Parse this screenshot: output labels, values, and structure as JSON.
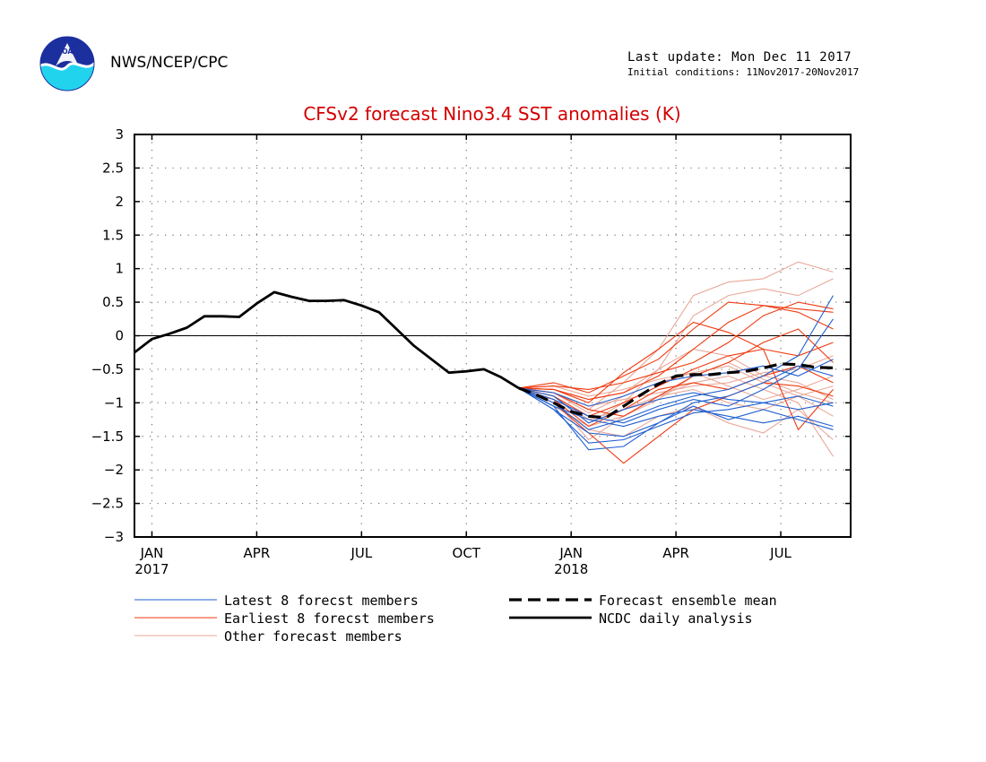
{
  "header": {
    "agency": "NWS/NCEP/CPC",
    "last_update": "Last update: Mon Dec 11 2017",
    "initial_conditions": "Initial conditions: 11Nov2017-20Nov2017",
    "logo_text": "NOAA"
  },
  "colors": {
    "title": "#d40000",
    "latest": "#1f5fd0",
    "earliest": "#ee3a10",
    "other": "#e8a99a",
    "mean": "#000000",
    "analysis": "#000000"
  },
  "chart_data": {
    "type": "line",
    "title": "CFSv2 forecast Nino3.4 SST anomalies (K)",
    "ylim": [
      -3,
      3
    ],
    "y_ticks": [
      3,
      2.5,
      2,
      1.5,
      1,
      0.5,
      0,
      -0.5,
      -1,
      -1.5,
      -2,
      -2.5,
      -3
    ],
    "y_tick_labels": [
      "3",
      "2.5",
      "2",
      "1.5",
      "1",
      "0.5",
      "0",
      "−0.5",
      "−1",
      "−1.5",
      "−2",
      "−2.5",
      "−3"
    ],
    "xlim": [
      -0.5,
      20
    ],
    "x_ticks": [
      {
        "x": 0,
        "label": "JAN",
        "year": "2017"
      },
      {
        "x": 3,
        "label": "APR",
        "year": ""
      },
      {
        "x": 6,
        "label": "JUL",
        "year": ""
      },
      {
        "x": 9,
        "label": "OCT",
        "year": ""
      },
      {
        "x": 12,
        "label": "JAN",
        "year": "2018"
      },
      {
        "x": 15,
        "label": "APR",
        "year": ""
      },
      {
        "x": 18,
        "label": "JUL",
        "year": ""
      }
    ],
    "grid": true,
    "zero_line": true,
    "legend": [
      {
        "label": "Latest 8 forecst members",
        "style": "latest"
      },
      {
        "label": "Earliest 8 forecst members",
        "style": "earliest"
      },
      {
        "label": "Other forecast members",
        "style": "other"
      },
      {
        "label": "Forecast ensemble mean",
        "style": "mean"
      },
      {
        "label": "NCDC daily analysis",
        "style": "analysis"
      }
    ],
    "analysis": {
      "x": [
        -0.5,
        0,
        0.5,
        1,
        1.5,
        2,
        2.5,
        3,
        3.5,
        4,
        4.5,
        5,
        5.5,
        6,
        6.5,
        7,
        7.5,
        8,
        8.5,
        9,
        9.5,
        10,
        10.5
      ],
      "values": [
        -0.25,
        -0.05,
        0.03,
        0.12,
        0.29,
        0.29,
        0.28,
        0.48,
        0.65,
        0.58,
        0.52,
        0.52,
        0.53,
        0.45,
        0.35,
        0.1,
        -0.15,
        -0.35,
        -0.55,
        -0.53,
        -0.5,
        -0.62,
        -0.78
      ]
    },
    "ensemble_mean": {
      "x": [
        10.5,
        11,
        11.5,
        12,
        12.5,
        13,
        13.5,
        14,
        14.5,
        15,
        15.5,
        16,
        16.5,
        17,
        17.5,
        18,
        18.5,
        19,
        19.5
      ],
      "values": [
        -0.78,
        -0.88,
        -1.0,
        -1.13,
        -1.2,
        -1.22,
        -1.05,
        -0.88,
        -0.72,
        -0.6,
        -0.58,
        -0.58,
        -0.55,
        -0.53,
        -0.48,
        -0.42,
        -0.43,
        -0.47,
        -0.48
      ]
    },
    "member_x": [
      10.5,
      11.5,
      12.5,
      13.5,
      14.5,
      15.5,
      16.5,
      17.5,
      18.5,
      19.5
    ],
    "members_latest": [
      [
        -0.78,
        -1.1,
        -1.6,
        -1.55,
        -1.35,
        -1.15,
        -1.1,
        -1.0,
        -0.9,
        -1.05
      ],
      [
        -0.78,
        -1.05,
        -1.7,
        -1.65,
        -1.3,
        -1.05,
        -1.25,
        -1.1,
        -1.25,
        -1.4
      ],
      [
        -0.78,
        -1.0,
        -1.4,
        -1.25,
        -1.05,
        -0.9,
        -0.8,
        -0.6,
        -0.3,
        0.6
      ],
      [
        -0.78,
        -0.95,
        -1.2,
        -1.3,
        -1.1,
        -0.95,
        -1.05,
        -0.8,
        -0.5,
        0.25
      ],
      [
        -0.78,
        -0.9,
        -1.3,
        -1.1,
        -0.95,
        -0.85,
        -0.95,
        -1.0,
        -1.1,
        -1.0
      ],
      [
        -0.78,
        -1.05,
        -1.25,
        -1.35,
        -1.2,
        -1.1,
        -1.2,
        -1.3,
        -1.2,
        -1.35
      ],
      [
        -0.78,
        -0.85,
        -1.05,
        -0.9,
        -0.7,
        -0.6,
        -0.55,
        -0.45,
        -0.6,
        -0.35
      ],
      [
        -0.78,
        -1.1,
        -1.45,
        -1.5,
        -1.3,
        -1.0,
        -0.9,
        -0.7,
        -0.45,
        -0.6
      ]
    ],
    "members_earliest": [
      [
        -0.78,
        -0.75,
        -0.8,
        -0.7,
        -0.55,
        -0.4,
        -0.1,
        0.3,
        0.5,
        0.4
      ],
      [
        -0.78,
        -0.8,
        -0.95,
        -0.85,
        -0.6,
        -0.2,
        0.2,
        0.45,
        0.4,
        0.35
      ],
      [
        -0.78,
        -0.7,
        -0.85,
        -0.6,
        -0.35,
        0.1,
        0.5,
        0.45,
        0.35,
        0.1
      ],
      [
        -0.78,
        -0.9,
        -1.2,
        -1.0,
        -0.75,
        -0.5,
        -0.3,
        -0.2,
        -1.4,
        -0.8
      ],
      [
        -0.78,
        -1.0,
        -1.45,
        -1.9,
        -1.5,
        -1.1,
        -0.9,
        -0.7,
        -0.75,
        -0.9
      ],
      [
        -0.78,
        -0.85,
        -1.1,
        -1.2,
        -0.9,
        -0.6,
        -0.4,
        -0.1,
        0.1,
        -0.4
      ],
      [
        -0.78,
        -0.95,
        -1.35,
        -1.1,
        -0.8,
        -0.7,
        -0.8,
        -0.6,
        -0.45,
        -0.7
      ],
      [
        -0.78,
        -0.8,
        -1.0,
        -0.55,
        -0.2,
        0.2,
        0.05,
        -0.2,
        -0.3,
        -0.1
      ]
    ],
    "members_other": [
      [
        -0.78,
        -0.85,
        -1.1,
        -0.7,
        -0.2,
        0.6,
        0.8,
        0.85,
        1.1,
        0.95
      ],
      [
        -0.78,
        -0.9,
        -1.3,
        -1.0,
        -0.5,
        0.3,
        0.6,
        0.7,
        0.6,
        0.85
      ],
      [
        -0.78,
        -0.95,
        -1.55,
        -1.2,
        -0.9,
        -0.7,
        -0.6,
        -0.8,
        -1.0,
        -1.8
      ],
      [
        -0.78,
        -0.75,
        -0.9,
        -0.8,
        -0.65,
        -0.55,
        -0.45,
        -0.7,
        -0.9,
        -1.2
      ],
      [
        -0.78,
        -1.0,
        -1.4,
        -1.5,
        -1.2,
        -1.05,
        -1.3,
        -1.45,
        -1.1,
        -1.55
      ],
      [
        -0.78,
        -0.85,
        -1.05,
        -0.95,
        -0.85,
        -0.75,
        -0.7,
        -0.55,
        -0.5,
        -0.3
      ],
      [
        -0.78,
        -0.8,
        -0.95,
        -0.85,
        -0.5,
        -0.2,
        -0.3,
        -0.6,
        -0.7,
        -0.95
      ],
      [
        -0.78,
        -0.9,
        -1.25,
        -1.1,
        -0.9,
        -0.8,
        -1.0,
        -1.1,
        -0.9,
        -0.75
      ],
      [
        -0.78,
        -1.05,
        -1.35,
        -1.2,
        -0.95,
        -0.6,
        -0.4,
        -0.65,
        -0.85,
        -1.0
      ],
      [
        -0.78,
        -0.85,
        -1.15,
        -0.9,
        -0.7,
        -0.55,
        -0.75,
        -0.95,
        -0.8,
        -0.6
      ]
    ]
  }
}
